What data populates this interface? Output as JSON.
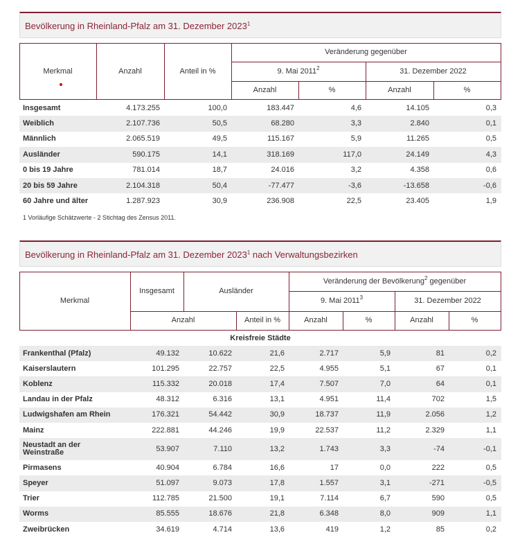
{
  "table1": {
    "title": {
      "text": "Bevölkerung in Rheinland-Pfalz am 31. Dezember 2023",
      "sup": "1"
    },
    "header": {
      "merkmal": "Merkmal",
      "anzahl": "Anzahl",
      "anteil": "Anteil in %",
      "veraenderung": "Veränderung gegenüber",
      "mai2011": {
        "text": "9. Mai 2011",
        "sup": "2"
      },
      "dez2022": "31. Dezember 2022",
      "sub": [
        "Anzahl",
        "%",
        "Anzahl",
        "%"
      ]
    },
    "rows": [
      [
        "Insgesamt",
        "4.173.255",
        "100,0",
        "183.447",
        "4,6",
        "14.105",
        "0,3"
      ],
      [
        "Weiblich",
        "2.107.736",
        "50,5",
        "68.280",
        "3,3",
        "2.840",
        "0,1"
      ],
      [
        "Männlich",
        "2.065.519",
        "49,5",
        "115.167",
        "5,9",
        "11.265",
        "0,5"
      ],
      [
        "Ausländer",
        "590.175",
        "14,1",
        "318.169",
        "117,0",
        "24.149",
        "4,3"
      ],
      [
        "0 bis 19 Jahre",
        "781.014",
        "18,7",
        "24.016",
        "3,2",
        "4.358",
        "0,6"
      ],
      [
        "20 bis 59 Jahre",
        "2.104.318",
        "50,4",
        "-77.477",
        "-3,6",
        "-13.658",
        "-0,6"
      ],
      [
        "60 Jahre und älter",
        "1.287.923",
        "30,9",
        "236.908",
        "22,5",
        "23.405",
        "1,9"
      ]
    ],
    "footnote": "1 Vorläufige Schätzwerte - 2 Stichtag des Zensus 2011."
  },
  "table2": {
    "title": {
      "text": "Bevölkerung in Rheinland-Pfalz am 31. Dezember 2023",
      "sup": "1",
      "after": " nach Verwaltungsbezirken"
    },
    "header": {
      "merkmal": "Merkmal",
      "insgesamt": "Insgesamt",
      "auslaender": "Ausländer",
      "veraenderung": {
        "text": "Veränderung der Bevölkerung",
        "sup": "2",
        "after": " gegenüber"
      },
      "mai2011": {
        "text": "9. Mai 2011",
        "sup": "3"
      },
      "dez2022": "31. Dezember 2022",
      "anzahl": "Anzahl",
      "anteil": "Anteil in %",
      "sub": [
        "Anzahl",
        "%",
        "Anzahl",
        "%"
      ]
    },
    "section": "Kreisfreie Städte",
    "rows": [
      [
        "Frankenthal (Pfalz)",
        "49.132",
        "10.622",
        "21,6",
        "2.717",
        "5,9",
        "81",
        "0,2"
      ],
      [
        "Kaiserslautern",
        "101.295",
        "22.757",
        "22,5",
        "4.955",
        "5,1",
        "67",
        "0,1"
      ],
      [
        "Koblenz",
        "115.332",
        "20.018",
        "17,4",
        "7.507",
        "7,0",
        "64",
        "0,1"
      ],
      [
        "Landau in der Pfalz",
        "48.312",
        "6.316",
        "13,1",
        "4.951",
        "11,4",
        "702",
        "1,5"
      ],
      [
        "Ludwigshafen am Rhein",
        "176.321",
        "54.442",
        "30,9",
        "18.737",
        "11,9",
        "2.056",
        "1,2"
      ],
      [
        "Mainz",
        "222.881",
        "44.246",
        "19,9",
        "22.537",
        "11,2",
        "2.329",
        "1,1"
      ],
      [
        "Neustadt an der\nWeinstraße",
        "53.907",
        "7.110",
        "13,2",
        "1.743",
        "3,3",
        "-74",
        "-0,1"
      ],
      [
        "Pirmasens",
        "40.904",
        "6.784",
        "16,6",
        "17",
        "0,0",
        "222",
        "0,5"
      ],
      [
        "Speyer",
        "51.097",
        "9.073",
        "17,8",
        "1.557",
        "3,1",
        "-271",
        "-0,5"
      ],
      [
        "Trier",
        "112.785",
        "21.500",
        "19,1",
        "7.114",
        "6,7",
        "590",
        "0,5"
      ],
      [
        "Worms",
        "85.555",
        "18.676",
        "21,8",
        "6.348",
        "8,0",
        "909",
        "1,1"
      ],
      [
        "Zweibrücken",
        "34.619",
        "4.714",
        "13,6",
        "419",
        "1,2",
        "85",
        "0,2"
      ]
    ]
  }
}
